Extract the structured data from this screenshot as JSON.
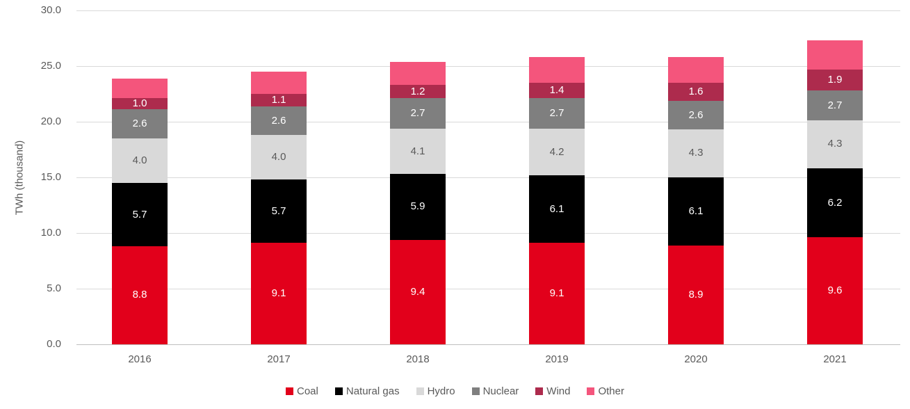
{
  "chart_data": {
    "type": "bar",
    "stacked": true,
    "title": "",
    "xlabel": "",
    "ylabel": "TWh (thousand)",
    "categories": [
      "2016",
      "2017",
      "2018",
      "2019",
      "2020",
      "2021"
    ],
    "series": [
      {
        "name": "Coal",
        "color": "#e2001b",
        "label_color": "#ffffff",
        "show_labels": true,
        "values": [
          8.8,
          9.1,
          9.4,
          9.1,
          8.9,
          9.6
        ]
      },
      {
        "name": "Natural gas",
        "color": "#000000",
        "label_color": "#ffffff",
        "show_labels": true,
        "values": [
          5.7,
          5.7,
          5.9,
          6.1,
          6.1,
          6.2
        ]
      },
      {
        "name": "Hydro",
        "color": "#d9d9d9",
        "label_color": "#595959",
        "show_labels": true,
        "values": [
          4.0,
          4.0,
          4.1,
          4.2,
          4.3,
          4.3
        ]
      },
      {
        "name": "Nuclear",
        "color": "#7f7f7f",
        "label_color": "#ffffff",
        "show_labels": true,
        "values": [
          2.6,
          2.6,
          2.7,
          2.7,
          2.6,
          2.7
        ]
      },
      {
        "name": "Wind",
        "color": "#ad2b4d",
        "label_color": "#ffffff",
        "show_labels": true,
        "values": [
          1.0,
          1.1,
          1.2,
          1.4,
          1.6,
          1.9
        ]
      },
      {
        "name": "Other",
        "color": "#f4557c",
        "label_color": "#ffffff",
        "show_labels": false,
        "values": [
          1.8,
          2.0,
          2.1,
          2.3,
          2.3,
          2.6
        ]
      }
    ],
    "ylim": [
      0,
      30
    ],
    "ytick_step": 5,
    "yticks": [
      "0.0",
      "5.0",
      "10.0",
      "15.0",
      "20.0",
      "25.0",
      "30.0"
    ],
    "grid": true,
    "legend_position": "bottom",
    "colors": {
      "axis_text": "#595959",
      "gridline": "#d9d9d9",
      "axis_line": "#bfbfbf",
      "background": "#ffffff"
    }
  }
}
